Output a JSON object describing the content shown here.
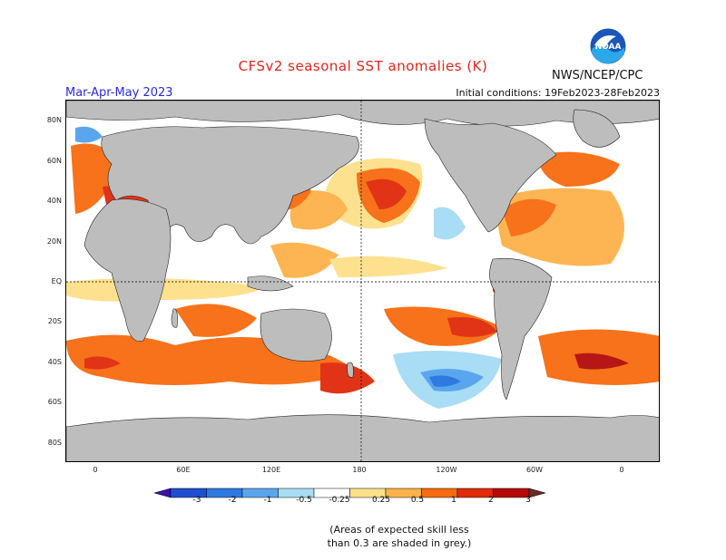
{
  "header": {
    "title": "CFSv2 seasonal SST anomalies (K)",
    "organization": "NWS/NCEP/CPC",
    "season": "Mar-Apr-May 2023",
    "initial_conditions": "Initial conditions: 19Feb2023-28Feb2023",
    "logo_text": "NOAA"
  },
  "map": {
    "lat_labels": [
      "80N",
      "60N",
      "40N",
      "20N",
      "EQ",
      "20S",
      "40S",
      "60S",
      "80S"
    ],
    "lon_labels": [
      "0",
      "60E",
      "120E",
      "180",
      "120W",
      "60W",
      "0"
    ]
  },
  "colorbar": {
    "ticks": [
      "-3",
      "-2",
      "-1",
      "-0.5",
      "-0.25",
      "0.25",
      "0.5",
      "1",
      "2",
      "3"
    ],
    "colors": [
      "#3a0fa8",
      "#1f4fd0",
      "#2f7ae0",
      "#5aa6ee",
      "#a9dcf5",
      "#ffffff",
      "#fde08a",
      "#fdb24a",
      "#f76b0e",
      "#e02a0a",
      "#b40a0a",
      "#6a2a24"
    ]
  },
  "note": {
    "line1": "(Areas of expected skill less",
    "line2": "than 0.3 are shaded in grey.)"
  },
  "colors": {
    "land": "#bdbdbd",
    "title": "#e0241b",
    "season": "#2a2ae0"
  }
}
